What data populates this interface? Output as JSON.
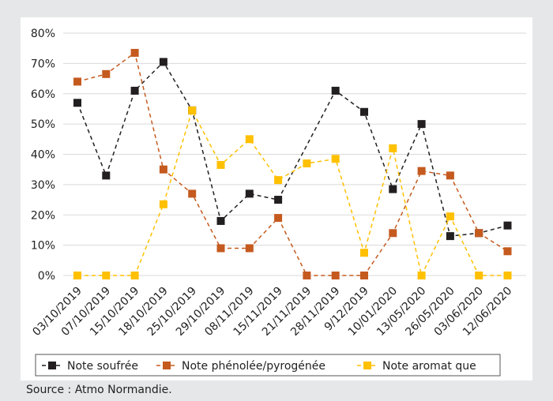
{
  "source": "Source : Atmo Normandie.",
  "chart_data": {
    "type": "line",
    "categories": [
      "03/10/2019",
      "07/10/2019",
      "15/10/2019",
      "18/10/2019",
      "25/10/2019",
      "29/10/2019",
      "08/11/2019",
      "15/11/2019",
      "21/11/2019",
      "28/11/2019",
      "9/12/2019",
      "10/01/2020",
      "13/05/2020",
      "26/05/2020",
      "03/06/2020",
      "12/06/2020"
    ],
    "series": [
      {
        "name": "Note soufrée",
        "color": "#231f20",
        "values": [
          57,
          33,
          61,
          70.5,
          54.5,
          18,
          27,
          25,
          null,
          61,
          54,
          28.5,
          50,
          13,
          14,
          16.5
        ]
      },
      {
        "name": "Note phénolée/pyrogénée",
        "color": "#c55a1f",
        "values": [
          64,
          66.5,
          73.5,
          35,
          27,
          9,
          9,
          19,
          0,
          0,
          0,
          14,
          34.5,
          33,
          14,
          8
        ]
      },
      {
        "name": "Note aromat que",
        "color": "#ffc000",
        "values": [
          0,
          0,
          0,
          23.5,
          54.5,
          36.5,
          45,
          31.5,
          37,
          38.5,
          7.5,
          42,
          0,
          19.5,
          0,
          0
        ]
      }
    ],
    "ylim": [
      0,
      80
    ],
    "yticks": [
      "0%",
      "10%",
      "20%",
      "30%",
      "40%",
      "50%",
      "60%",
      "70%",
      "80%"
    ],
    "grid": true,
    "legend": "bottom",
    "line_style": "dashed",
    "marker": "square"
  }
}
